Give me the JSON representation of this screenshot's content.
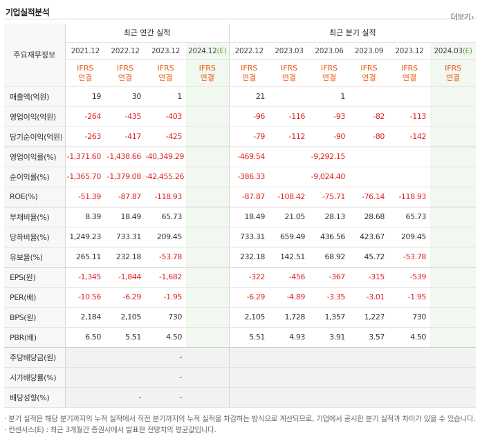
{
  "title": "기업실적분석",
  "more": "더보기",
  "header": {
    "row_label": "주요재무정보",
    "annual_group": "최근 연간 실적",
    "quarterly_group": "최근 분기 실적",
    "annual_periods": [
      "2021.12",
      "2022.12",
      "2023.12",
      "2024.12"
    ],
    "quarterly_periods": [
      "2022.12",
      "2023.03",
      "2023.06",
      "2023.09",
      "2023.12",
      "2024.03"
    ],
    "estimate_mark": "(E)",
    "ifrs_line1": "IFRS",
    "ifrs_line2": "연결"
  },
  "rows": [
    {
      "label": "매출액(억원)",
      "annual": [
        "19",
        "30",
        "1",
        ""
      ],
      "quarterly": [
        "21",
        "",
        "1",
        "",
        "",
        ""
      ]
    },
    {
      "label": "영업이익(억원)",
      "annual": [
        "-264",
        "-435",
        "-403",
        ""
      ],
      "quarterly": [
        "-96",
        "-116",
        "-93",
        "-82",
        "-113",
        ""
      ]
    },
    {
      "label": "당기순이익(억원)",
      "annual": [
        "-263",
        "-417",
        "-425",
        ""
      ],
      "quarterly": [
        "-79",
        "-112",
        "-90",
        "-80",
        "-142",
        ""
      ]
    },
    {
      "label": "영업이익률(%)",
      "annual": [
        "-1,371.60",
        "-1,438.66",
        "-40,349.29",
        ""
      ],
      "quarterly": [
        "-469.54",
        "",
        "-9,292.15",
        "",
        "",
        ""
      ]
    },
    {
      "label": "순이익률(%)",
      "annual": [
        "-1,365.70",
        "-1,379.08",
        "-42,455.26",
        ""
      ],
      "quarterly": [
        "-386.33",
        "",
        "-9,024.40",
        "",
        "",
        ""
      ]
    },
    {
      "label": "ROE(%)",
      "annual": [
        "-51.39",
        "-87.87",
        "-118.93",
        ""
      ],
      "quarterly": [
        "-87.87",
        "-108.42",
        "-75.71",
        "-76.14",
        "-118.93",
        ""
      ]
    },
    {
      "label": "부채비율(%)",
      "annual": [
        "8.39",
        "18.49",
        "65.73",
        ""
      ],
      "quarterly": [
        "18.49",
        "21.05",
        "28.13",
        "28.68",
        "65.73",
        ""
      ]
    },
    {
      "label": "당좌비율(%)",
      "annual": [
        "1,249.23",
        "733.31",
        "209.45",
        ""
      ],
      "quarterly": [
        "733.31",
        "659.49",
        "436.56",
        "423.67",
        "209.45",
        ""
      ]
    },
    {
      "label": "유보율(%)",
      "annual": [
        "265.11",
        "232.18",
        "-53.78",
        ""
      ],
      "quarterly": [
        "232.18",
        "142.51",
        "68.92",
        "45.72",
        "-53.78",
        ""
      ]
    },
    {
      "label": "EPS(원)",
      "annual": [
        "-1,345",
        "-1,844",
        "-1,682",
        ""
      ],
      "quarterly": [
        "-322",
        "-456",
        "-367",
        "-315",
        "-539",
        ""
      ]
    },
    {
      "label": "PER(배)",
      "annual": [
        "-10.56",
        "-6.29",
        "-1.95",
        ""
      ],
      "quarterly": [
        "-6.29",
        "-4.89",
        "-3.35",
        "-3.01",
        "-1.95",
        ""
      ]
    },
    {
      "label": "BPS(원)",
      "annual": [
        "2,184",
        "2,105",
        "730",
        ""
      ],
      "quarterly": [
        "2,105",
        "1,728",
        "1,357",
        "1,227",
        "730",
        ""
      ]
    },
    {
      "label": "PBR(배)",
      "annual": [
        "6.50",
        "5.51",
        "4.50",
        ""
      ],
      "quarterly": [
        "5.51",
        "4.93",
        "3.91",
        "3.57",
        "4.50",
        ""
      ]
    },
    {
      "label": "주당배당금(원)",
      "annual": [
        "",
        "",
        "-",
        ""
      ],
      "quarterly": [
        "",
        "",
        "",
        "",
        "",
        ""
      ]
    },
    {
      "label": "시가배당률(%)",
      "annual": [
        "",
        "",
        "-",
        ""
      ],
      "quarterly": [
        "",
        "",
        "",
        "",
        "",
        ""
      ]
    },
    {
      "label": "배당성향(%)",
      "annual": [
        "",
        "-",
        "-",
        ""
      ],
      "quarterly": [
        "",
        "",
        "",
        "",
        "",
        ""
      ]
    }
  ],
  "notes": [
    "분기 실적은 해당 분기까지의 누적 실적에서 직전 분기까지의 누적 실적을 차감하는 방식으로 계산되므로, 기업에서 공시한 분기 실적과 차이가 있을 수 있습니다.",
    "컨센서스(E) : 최근 3개월간 증권사에서 발표한 전망치의 평균값입니다."
  ],
  "colors": {
    "negative": "#e22020",
    "ifrs": "#ee5b12",
    "estimate_bg": "#f1f8ef",
    "estimate_mark": "#6aa54a"
  }
}
